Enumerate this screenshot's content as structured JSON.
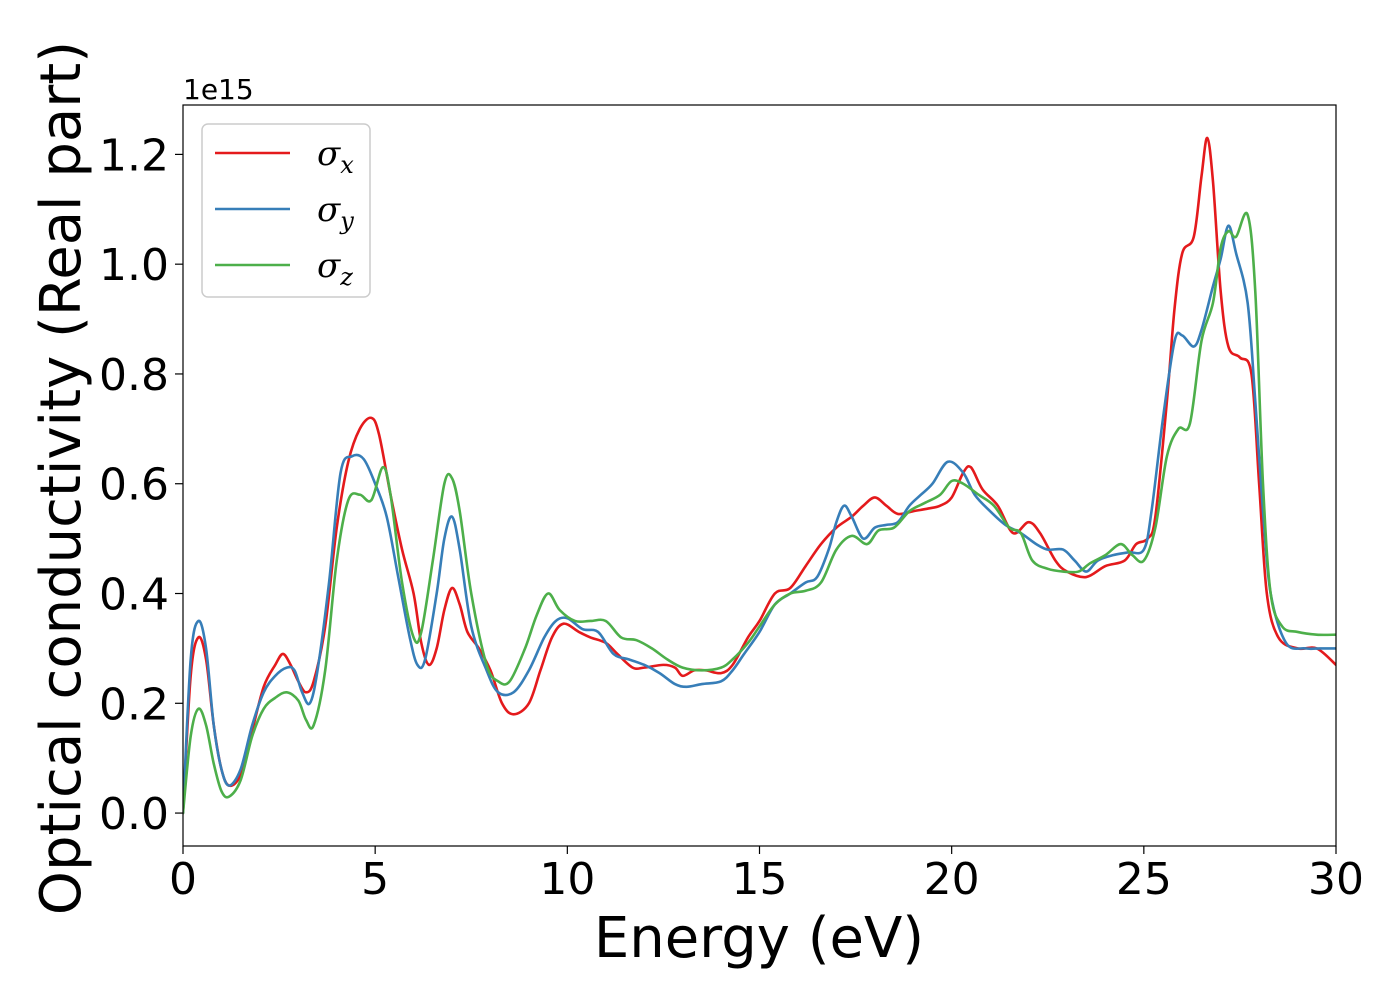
{
  "chart_data": {
    "type": "line",
    "xlabel": "Energy (eV)",
    "ylabel": "Optical conductivity (Real part)",
    "y_offset_label": "1e15",
    "xlim": [
      0,
      30
    ],
    "ylim": [
      -0.06,
      1.29
    ],
    "xticks": [
      0,
      5,
      10,
      15,
      20,
      25,
      30
    ],
    "xtick_labels": [
      "0",
      "5",
      "10",
      "15",
      "20",
      "25",
      "30"
    ],
    "yticks": [
      0.0,
      0.2,
      0.4,
      0.6,
      0.8,
      1.0,
      1.2
    ],
    "ytick_labels": [
      "0.0",
      "0.2",
      "0.4",
      "0.6",
      "0.8",
      "1.0",
      "1.2"
    ],
    "grid": false,
    "legend_position": "top-left",
    "series": [
      {
        "name": "σx",
        "base": "σ",
        "sub": "x",
        "color": "#e41a1c",
        "points": [
          [
            0,
            0
          ],
          [
            0.2,
            0.25
          ],
          [
            0.4,
            0.32
          ],
          [
            0.6,
            0.28
          ],
          [
            0.8,
            0.16
          ],
          [
            1.0,
            0.08
          ],
          [
            1.2,
            0.05
          ],
          [
            1.5,
            0.07
          ],
          [
            1.8,
            0.15
          ],
          [
            2.1,
            0.23
          ],
          [
            2.4,
            0.27
          ],
          [
            2.6,
            0.29
          ],
          [
            2.8,
            0.27
          ],
          [
            3.0,
            0.24
          ],
          [
            3.2,
            0.22
          ],
          [
            3.4,
            0.24
          ],
          [
            3.7,
            0.34
          ],
          [
            4.0,
            0.52
          ],
          [
            4.3,
            0.64
          ],
          [
            4.6,
            0.7
          ],
          [
            4.9,
            0.72
          ],
          [
            5.1,
            0.69
          ],
          [
            5.4,
            0.58
          ],
          [
            5.7,
            0.48
          ],
          [
            6.0,
            0.4
          ],
          [
            6.2,
            0.31
          ],
          [
            6.4,
            0.27
          ],
          [
            6.6,
            0.3
          ],
          [
            6.8,
            0.37
          ],
          [
            7.0,
            0.41
          ],
          [
            7.2,
            0.38
          ],
          [
            7.4,
            0.33
          ],
          [
            7.7,
            0.3
          ],
          [
            8.0,
            0.26
          ],
          [
            8.3,
            0.2
          ],
          [
            8.6,
            0.18
          ],
          [
            9.0,
            0.2
          ],
          [
            9.3,
            0.26
          ],
          [
            9.6,
            0.32
          ],
          [
            9.9,
            0.345
          ],
          [
            10.3,
            0.33
          ],
          [
            10.6,
            0.32
          ],
          [
            11.0,
            0.31
          ],
          [
            11.3,
            0.29
          ],
          [
            11.7,
            0.265
          ],
          [
            12.0,
            0.265
          ],
          [
            12.5,
            0.27
          ],
          [
            12.8,
            0.265
          ],
          [
            13.0,
            0.25
          ],
          [
            13.3,
            0.26
          ],
          [
            13.6,
            0.26
          ],
          [
            14.0,
            0.255
          ],
          [
            14.3,
            0.27
          ],
          [
            14.7,
            0.32
          ],
          [
            15.0,
            0.35
          ],
          [
            15.4,
            0.4
          ],
          [
            15.8,
            0.41
          ],
          [
            16.2,
            0.45
          ],
          [
            16.6,
            0.49
          ],
          [
            17.0,
            0.52
          ],
          [
            17.4,
            0.54
          ],
          [
            17.7,
            0.56
          ],
          [
            18.0,
            0.575
          ],
          [
            18.3,
            0.56
          ],
          [
            18.6,
            0.545
          ],
          [
            19.0,
            0.55
          ],
          [
            19.4,
            0.555
          ],
          [
            19.7,
            0.56
          ],
          [
            20.0,
            0.575
          ],
          [
            20.3,
            0.62
          ],
          [
            20.5,
            0.63
          ],
          [
            20.8,
            0.59
          ],
          [
            21.2,
            0.56
          ],
          [
            21.6,
            0.51
          ],
          [
            22.0,
            0.53
          ],
          [
            22.3,
            0.51
          ],
          [
            22.7,
            0.46
          ],
          [
            23.0,
            0.44
          ],
          [
            23.5,
            0.43
          ],
          [
            24.0,
            0.45
          ],
          [
            24.5,
            0.46
          ],
          [
            24.8,
            0.49
          ],
          [
            25.1,
            0.5
          ],
          [
            25.3,
            0.54
          ],
          [
            25.6,
            0.75
          ],
          [
            25.8,
            0.92
          ],
          [
            26.0,
            1.02
          ],
          [
            26.3,
            1.05
          ],
          [
            26.5,
            1.16
          ],
          [
            26.65,
            1.23
          ],
          [
            26.8,
            1.15
          ],
          [
            27.0,
            0.95
          ],
          [
            27.2,
            0.85
          ],
          [
            27.5,
            0.83
          ],
          [
            27.8,
            0.8
          ],
          [
            28.0,
            0.6
          ],
          [
            28.2,
            0.4
          ],
          [
            28.5,
            0.32
          ],
          [
            29.0,
            0.3
          ],
          [
            29.5,
            0.3
          ],
          [
            30.0,
            0.27
          ]
        ]
      },
      {
        "name": "σy",
        "base": "σ",
        "sub": "y",
        "color": "#377eb8",
        "points": [
          [
            0,
            0
          ],
          [
            0.2,
            0.28
          ],
          [
            0.4,
            0.35
          ],
          [
            0.6,
            0.3
          ],
          [
            0.8,
            0.16
          ],
          [
            1.0,
            0.08
          ],
          [
            1.2,
            0.05
          ],
          [
            1.5,
            0.08
          ],
          [
            1.8,
            0.16
          ],
          [
            2.1,
            0.22
          ],
          [
            2.4,
            0.25
          ],
          [
            2.7,
            0.265
          ],
          [
            2.9,
            0.26
          ],
          [
            3.1,
            0.22
          ],
          [
            3.3,
            0.2
          ],
          [
            3.5,
            0.26
          ],
          [
            3.8,
            0.42
          ],
          [
            4.1,
            0.62
          ],
          [
            4.4,
            0.65
          ],
          [
            4.7,
            0.645
          ],
          [
            5.0,
            0.6
          ],
          [
            5.3,
            0.54
          ],
          [
            5.6,
            0.43
          ],
          [
            5.9,
            0.32
          ],
          [
            6.1,
            0.27
          ],
          [
            6.3,
            0.28
          ],
          [
            6.6,
            0.4
          ],
          [
            6.8,
            0.5
          ],
          [
            7.0,
            0.54
          ],
          [
            7.2,
            0.48
          ],
          [
            7.5,
            0.34
          ],
          [
            7.9,
            0.26
          ],
          [
            8.2,
            0.22
          ],
          [
            8.6,
            0.22
          ],
          [
            9.0,
            0.26
          ],
          [
            9.4,
            0.32
          ],
          [
            9.7,
            0.35
          ],
          [
            10.0,
            0.355
          ],
          [
            10.4,
            0.335
          ],
          [
            10.8,
            0.33
          ],
          [
            11.2,
            0.29
          ],
          [
            11.6,
            0.28
          ],
          [
            12.0,
            0.27
          ],
          [
            12.4,
            0.255
          ],
          [
            12.8,
            0.235
          ],
          [
            13.1,
            0.23
          ],
          [
            13.5,
            0.235
          ],
          [
            14.0,
            0.24
          ],
          [
            14.3,
            0.26
          ],
          [
            14.6,
            0.29
          ],
          [
            15.0,
            0.33
          ],
          [
            15.4,
            0.38
          ],
          [
            15.8,
            0.4
          ],
          [
            16.2,
            0.42
          ],
          [
            16.5,
            0.43
          ],
          [
            16.8,
            0.48
          ],
          [
            17.0,
            0.53
          ],
          [
            17.2,
            0.56
          ],
          [
            17.4,
            0.54
          ],
          [
            17.7,
            0.5
          ],
          [
            18.0,
            0.52
          ],
          [
            18.3,
            0.525
          ],
          [
            18.6,
            0.53
          ],
          [
            18.9,
            0.56
          ],
          [
            19.2,
            0.58
          ],
          [
            19.5,
            0.6
          ],
          [
            19.9,
            0.64
          ],
          [
            20.3,
            0.62
          ],
          [
            20.6,
            0.58
          ],
          [
            21.0,
            0.55
          ],
          [
            21.4,
            0.525
          ],
          [
            21.8,
            0.51
          ],
          [
            22.2,
            0.49
          ],
          [
            22.5,
            0.48
          ],
          [
            22.9,
            0.48
          ],
          [
            23.2,
            0.46
          ],
          [
            23.5,
            0.44
          ],
          [
            23.8,
            0.46
          ],
          [
            24.2,
            0.47
          ],
          [
            24.6,
            0.475
          ],
          [
            25.0,
            0.48
          ],
          [
            25.2,
            0.55
          ],
          [
            25.5,
            0.72
          ],
          [
            25.8,
            0.86
          ],
          [
            26.0,
            0.87
          ],
          [
            26.3,
            0.85
          ],
          [
            26.5,
            0.88
          ],
          [
            26.8,
            0.96
          ],
          [
            27.0,
            1.01
          ],
          [
            27.2,
            1.07
          ],
          [
            27.4,
            1.02
          ],
          [
            27.7,
            0.93
          ],
          [
            27.9,
            0.75
          ],
          [
            28.1,
            0.55
          ],
          [
            28.3,
            0.4
          ],
          [
            28.7,
            0.31
          ],
          [
            29.2,
            0.3
          ],
          [
            29.6,
            0.3
          ],
          [
            30.0,
            0.3
          ]
        ]
      },
      {
        "name": "σz",
        "base": "σ",
        "sub": "z",
        "color": "#4daf4a",
        "points": [
          [
            0,
            0
          ],
          [
            0.2,
            0.14
          ],
          [
            0.4,
            0.19
          ],
          [
            0.6,
            0.16
          ],
          [
            0.8,
            0.09
          ],
          [
            1.0,
            0.04
          ],
          [
            1.2,
            0.03
          ],
          [
            1.5,
            0.06
          ],
          [
            1.8,
            0.14
          ],
          [
            2.1,
            0.19
          ],
          [
            2.4,
            0.21
          ],
          [
            2.7,
            0.22
          ],
          [
            3.0,
            0.205
          ],
          [
            3.2,
            0.17
          ],
          [
            3.4,
            0.16
          ],
          [
            3.7,
            0.26
          ],
          [
            4.0,
            0.46
          ],
          [
            4.3,
            0.57
          ],
          [
            4.6,
            0.58
          ],
          [
            4.9,
            0.57
          ],
          [
            5.2,
            0.63
          ],
          [
            5.4,
            0.58
          ],
          [
            5.7,
            0.42
          ],
          [
            6.0,
            0.32
          ],
          [
            6.2,
            0.33
          ],
          [
            6.5,
            0.46
          ],
          [
            6.8,
            0.6
          ],
          [
            7.0,
            0.61
          ],
          [
            7.2,
            0.55
          ],
          [
            7.5,
            0.4
          ],
          [
            7.9,
            0.27
          ],
          [
            8.2,
            0.24
          ],
          [
            8.5,
            0.24
          ],
          [
            8.9,
            0.3
          ],
          [
            9.2,
            0.36
          ],
          [
            9.5,
            0.4
          ],
          [
            9.8,
            0.37
          ],
          [
            10.2,
            0.35
          ],
          [
            10.6,
            0.35
          ],
          [
            11.0,
            0.35
          ],
          [
            11.4,
            0.32
          ],
          [
            11.8,
            0.315
          ],
          [
            12.2,
            0.3
          ],
          [
            12.6,
            0.28
          ],
          [
            13.0,
            0.265
          ],
          [
            13.5,
            0.26
          ],
          [
            14.0,
            0.265
          ],
          [
            14.3,
            0.28
          ],
          [
            14.7,
            0.31
          ],
          [
            15.0,
            0.34
          ],
          [
            15.4,
            0.38
          ],
          [
            15.8,
            0.4
          ],
          [
            16.2,
            0.405
          ],
          [
            16.6,
            0.42
          ],
          [
            17.0,
            0.48
          ],
          [
            17.4,
            0.505
          ],
          [
            17.8,
            0.49
          ],
          [
            18.1,
            0.515
          ],
          [
            18.5,
            0.52
          ],
          [
            18.9,
            0.55
          ],
          [
            19.3,
            0.565
          ],
          [
            19.7,
            0.58
          ],
          [
            20.0,
            0.605
          ],
          [
            20.3,
            0.6
          ],
          [
            20.7,
            0.58
          ],
          [
            21.1,
            0.56
          ],
          [
            21.5,
            0.52
          ],
          [
            21.8,
            0.51
          ],
          [
            22.1,
            0.46
          ],
          [
            22.5,
            0.445
          ],
          [
            22.9,
            0.44
          ],
          [
            23.3,
            0.44
          ],
          [
            23.6,
            0.455
          ],
          [
            24.0,
            0.47
          ],
          [
            24.4,
            0.49
          ],
          [
            24.7,
            0.47
          ],
          [
            25.0,
            0.46
          ],
          [
            25.3,
            0.52
          ],
          [
            25.6,
            0.65
          ],
          [
            25.9,
            0.7
          ],
          [
            26.2,
            0.71
          ],
          [
            26.5,
            0.86
          ],
          [
            26.8,
            0.93
          ],
          [
            27.0,
            1.03
          ],
          [
            27.2,
            1.06
          ],
          [
            27.4,
            1.05
          ],
          [
            27.7,
            1.09
          ],
          [
            27.9,
            0.95
          ],
          [
            28.1,
            0.6
          ],
          [
            28.3,
            0.4
          ],
          [
            28.6,
            0.34
          ],
          [
            29.0,
            0.33
          ],
          [
            29.5,
            0.325
          ],
          [
            30.0,
            0.325
          ]
        ]
      }
    ]
  }
}
